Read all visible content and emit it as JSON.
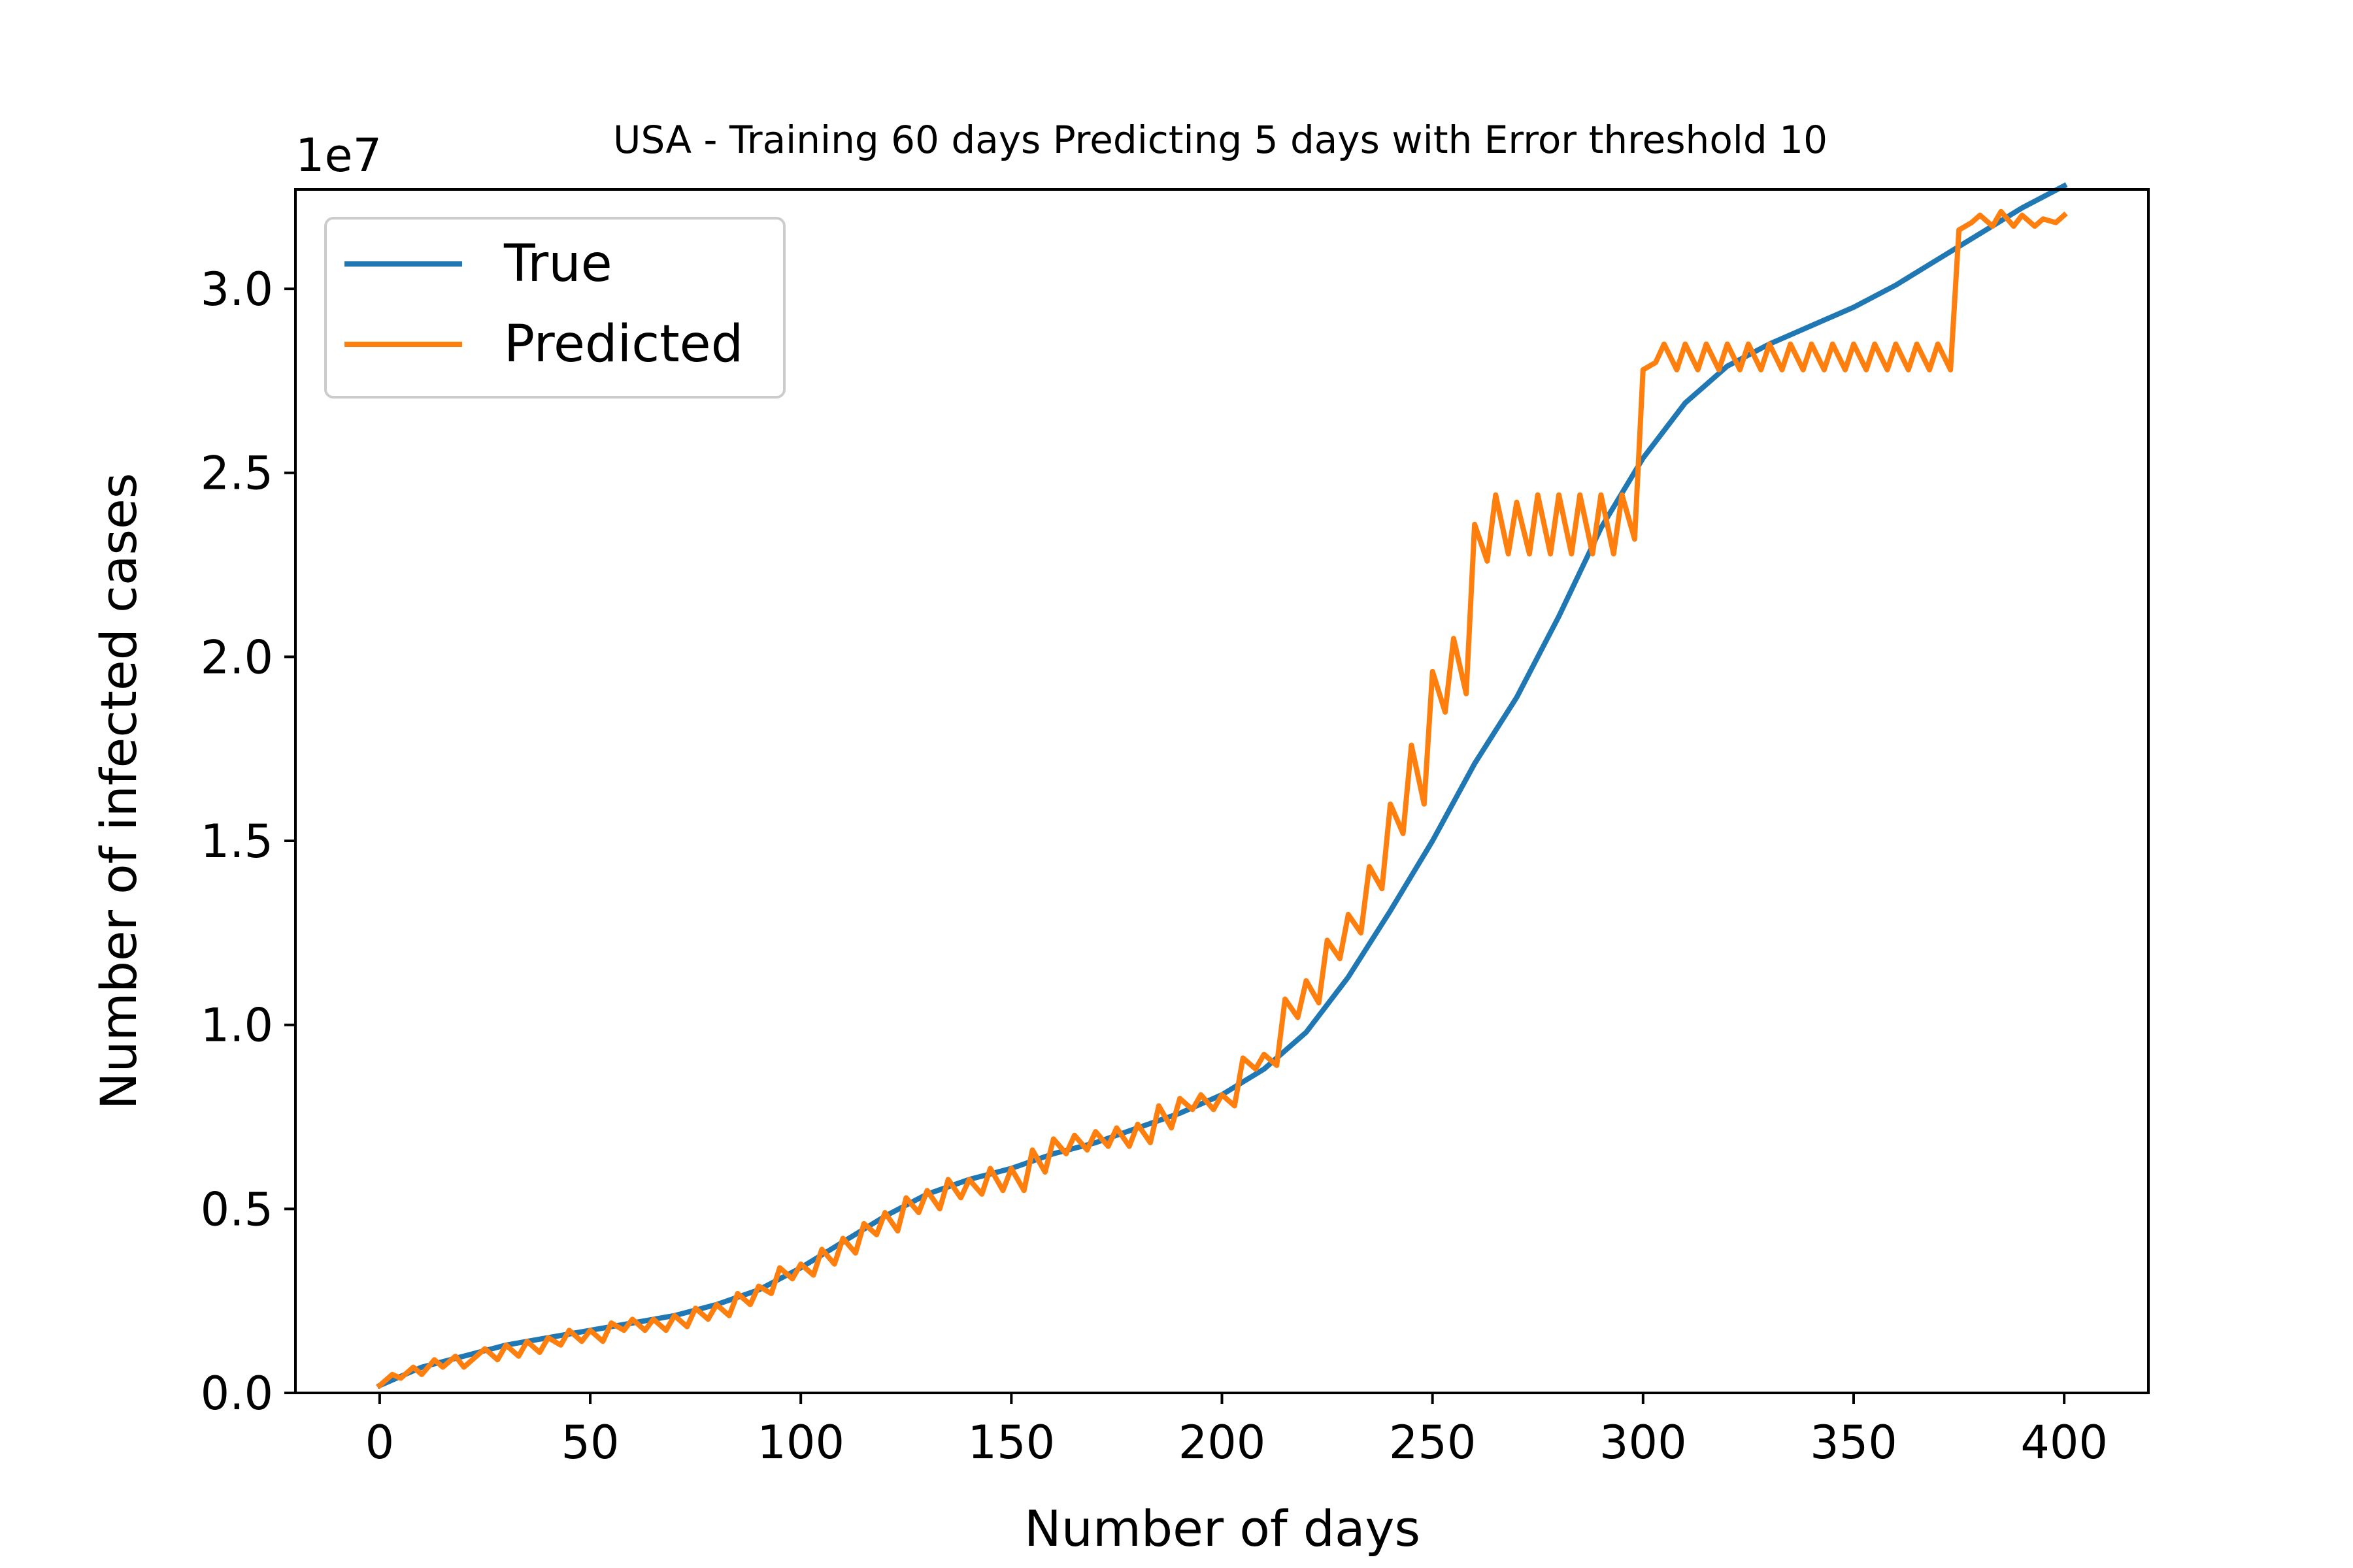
{
  "chart_data": {
    "type": "line",
    "title": "USA - Training 60 days Predicting 5 days with Error threshold 10",
    "xlabel": "Number of days",
    "ylabel": "Number of infected cases",
    "y_offset_label": "1e7",
    "xlim": [
      -20,
      420
    ],
    "ylim": [
      0,
      3.27
    ],
    "x_ticks": [
      0,
      50,
      100,
      150,
      200,
      250,
      300,
      350,
      400
    ],
    "x_tick_labels": [
      "0",
      "50",
      "100",
      "150",
      "200",
      "250",
      "300",
      "350",
      "400"
    ],
    "y_ticks": [
      0.0,
      0.5,
      1.0,
      1.5,
      2.0,
      2.5,
      3.0
    ],
    "y_tick_labels": [
      "0.0",
      "0.5",
      "1.0",
      "1.5",
      "2.0",
      "2.5",
      "3.0"
    ],
    "grid": false,
    "legend_position": "upper-left",
    "series": [
      {
        "name": "True",
        "color": "#1f77b4",
        "x": [
          0,
          10,
          20,
          30,
          40,
          50,
          60,
          70,
          80,
          90,
          100,
          110,
          120,
          130,
          140,
          150,
          160,
          170,
          180,
          190,
          200,
          210,
          220,
          230,
          240,
          250,
          260,
          270,
          280,
          290,
          300,
          310,
          320,
          330,
          340,
          350,
          360,
          370,
          380,
          390,
          400
        ],
        "y": [
          0.02,
          0.07,
          0.1,
          0.13,
          0.15,
          0.17,
          0.19,
          0.21,
          0.24,
          0.28,
          0.34,
          0.41,
          0.48,
          0.54,
          0.58,
          0.61,
          0.65,
          0.68,
          0.72,
          0.76,
          0.81,
          0.88,
          0.98,
          1.13,
          1.31,
          1.5,
          1.71,
          1.89,
          2.11,
          2.35,
          2.54,
          2.69,
          2.79,
          2.85,
          2.9,
          2.95,
          3.01,
          3.08,
          3.15,
          3.22,
          3.28
        ]
      },
      {
        "name": "Predicted",
        "color": "#ff7f0e",
        "x": [
          0,
          3,
          5,
          8,
          10,
          13,
          15,
          18,
          20,
          25,
          28,
          30,
          33,
          35,
          38,
          40,
          43,
          45,
          48,
          50,
          53,
          55,
          58,
          60,
          63,
          65,
          68,
          70,
          73,
          75,
          78,
          80,
          83,
          85,
          88,
          90,
          93,
          95,
          98,
          100,
          103,
          105,
          108,
          110,
          113,
          115,
          118,
          120,
          123,
          125,
          128,
          130,
          133,
          135,
          138,
          140,
          143,
          145,
          148,
          150,
          153,
          155,
          158,
          160,
          163,
          165,
          168,
          170,
          173,
          175,
          178,
          180,
          183,
          185,
          188,
          190,
          193,
          195,
          198,
          200,
          203,
          205,
          208,
          210,
          213,
          215,
          218,
          220,
          223,
          225,
          228,
          230,
          233,
          235,
          238,
          240,
          243,
          245,
          248,
          250,
          253,
          255,
          258,
          260,
          263,
          265,
          268,
          270,
          273,
          275,
          278,
          280,
          283,
          285,
          288,
          290,
          293,
          295,
          298,
          300,
          303,
          305,
          308,
          310,
          313,
          315,
          318,
          320,
          323,
          325,
          328,
          330,
          333,
          335,
          338,
          340,
          343,
          345,
          348,
          350,
          353,
          355,
          358,
          360,
          363,
          365,
          368,
          370,
          373,
          375,
          378,
          380,
          383,
          385,
          388,
          390,
          393,
          395,
          398,
          400
        ],
        "y": [
          0.02,
          0.05,
          0.04,
          0.07,
          0.05,
          0.09,
          0.07,
          0.1,
          0.07,
          0.12,
          0.09,
          0.13,
          0.1,
          0.14,
          0.11,
          0.15,
          0.13,
          0.17,
          0.14,
          0.17,
          0.14,
          0.19,
          0.17,
          0.2,
          0.17,
          0.2,
          0.17,
          0.21,
          0.18,
          0.23,
          0.2,
          0.24,
          0.21,
          0.27,
          0.24,
          0.29,
          0.27,
          0.34,
          0.31,
          0.35,
          0.32,
          0.39,
          0.35,
          0.42,
          0.38,
          0.46,
          0.43,
          0.49,
          0.44,
          0.53,
          0.49,
          0.55,
          0.5,
          0.58,
          0.53,
          0.58,
          0.54,
          0.61,
          0.55,
          0.61,
          0.55,
          0.66,
          0.6,
          0.69,
          0.65,
          0.7,
          0.66,
          0.71,
          0.67,
          0.72,
          0.67,
          0.73,
          0.68,
          0.78,
          0.72,
          0.8,
          0.77,
          0.81,
          0.77,
          0.81,
          0.78,
          0.91,
          0.88,
          0.92,
          0.89,
          1.07,
          1.02,
          1.12,
          1.06,
          1.23,
          1.18,
          1.3,
          1.25,
          1.43,
          1.37,
          1.6,
          1.52,
          1.76,
          1.6,
          1.96,
          1.85,
          2.05,
          1.9,
          2.36,
          2.26,
          2.44,
          2.28,
          2.42,
          2.28,
          2.44,
          2.28,
          2.44,
          2.28,
          2.44,
          2.28,
          2.44,
          2.28,
          2.44,
          2.32,
          2.78,
          2.8,
          2.85,
          2.78,
          2.85,
          2.78,
          2.85,
          2.78,
          2.85,
          2.78,
          2.85,
          2.78,
          2.85,
          2.78,
          2.85,
          2.78,
          2.85,
          2.78,
          2.85,
          2.78,
          2.85,
          2.78,
          2.85,
          2.78,
          2.85,
          2.78,
          2.85,
          2.78,
          2.85,
          2.78,
          3.16,
          3.18,
          3.2,
          3.17,
          3.21,
          3.17,
          3.2,
          3.17,
          3.19,
          3.18,
          3.2
        ]
      }
    ]
  }
}
